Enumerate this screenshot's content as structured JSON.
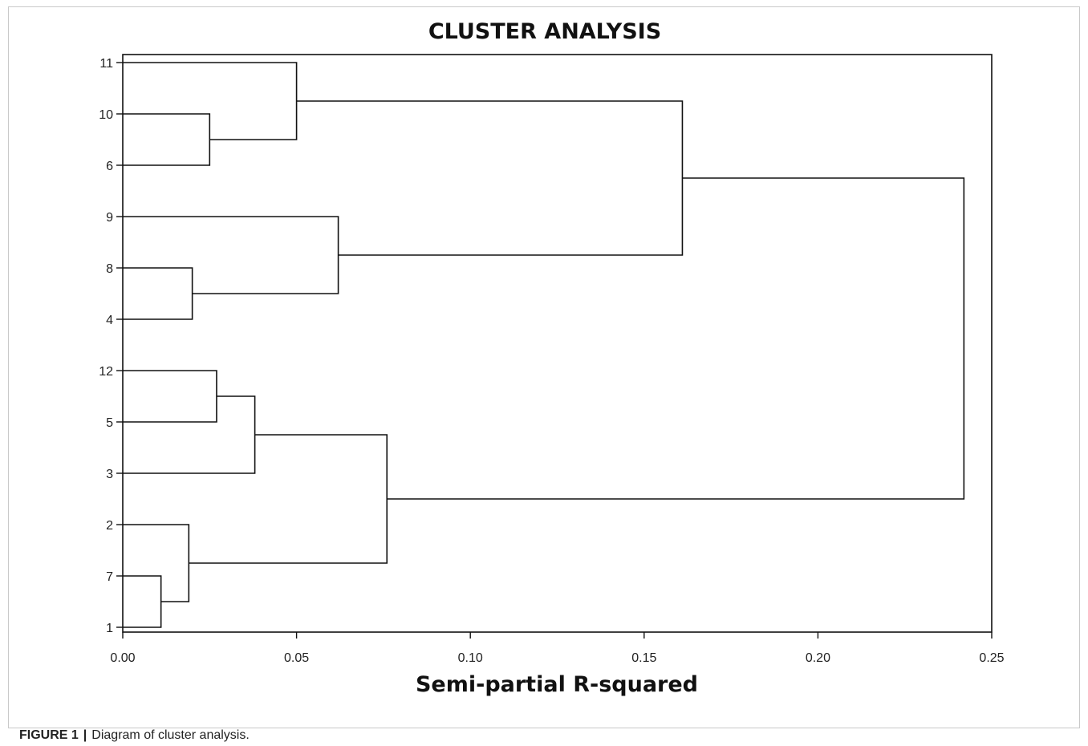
{
  "chart_data": {
    "type": "dendrogram",
    "title": "CLUSTER ANALYSIS",
    "xlabel": "Semi-partial R-squared",
    "ylabel": "",
    "xlim": [
      0,
      0.25
    ],
    "x_ticks": [
      "0.00",
      "0.05",
      "0.10",
      "0.15",
      "0.20",
      "0.25"
    ],
    "leaf_order": [
      "11",
      "10",
      "6",
      "9",
      "8",
      "4",
      "12",
      "5",
      "3",
      "2",
      "7",
      "1"
    ],
    "merges": [
      {
        "members": [
          "7",
          "1"
        ],
        "height": 0.011
      },
      {
        "members": [
          "8",
          "4"
        ],
        "height": 0.02
      },
      {
        "members": [
          "2",
          "7+1"
        ],
        "height": 0.019
      },
      {
        "members": [
          "10",
          "6"
        ],
        "height": 0.025
      },
      {
        "members": [
          "12",
          "5"
        ],
        "height": 0.027
      },
      {
        "members": [
          "12+5",
          "3"
        ],
        "height": 0.038
      },
      {
        "members": [
          "11",
          "10+6"
        ],
        "height": 0.05
      },
      {
        "members": [
          "9",
          "8+4"
        ],
        "height": 0.062
      },
      {
        "members": [
          "12+5+3",
          "2+7+1"
        ],
        "height": 0.076
      },
      {
        "members": [
          "11+10+6",
          "9+8+4"
        ],
        "height": 0.161
      },
      {
        "members": [
          "11+10+6+9+8+4",
          "12+5+3+2+7+1"
        ],
        "height": 0.242
      }
    ],
    "grid": false,
    "legend": "none"
  },
  "caption": {
    "label": "FIGURE 1",
    "separator": "|",
    "text": "Diagram of cluster analysis."
  }
}
